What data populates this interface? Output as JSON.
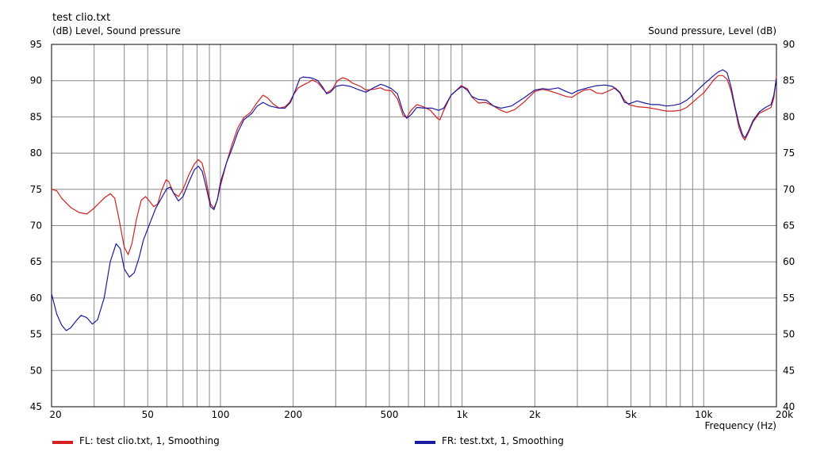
{
  "chart_data": {
    "type": "line",
    "title": "test clio.txt",
    "left_axis_label": "(dB)  Level, Sound pressure",
    "right_axis_label": "Sound pressure, Level  (dB)",
    "xlabel": "Frequency  (Hz)",
    "x_scale": "log",
    "xlim": [
      20,
      20000
    ],
    "ylim_left": [
      45,
      95
    ],
    "ylim_right": [
      40,
      90
    ],
    "y_ticks_left": [
      "45",
      "50",
      "55",
      "60",
      "65",
      "70",
      "75",
      "80",
      "85",
      "90",
      "95"
    ],
    "y_ticks_right": [
      "40",
      "45",
      "50",
      "55",
      "60",
      "65",
      "70",
      "75",
      "80",
      "85",
      "90"
    ],
    "x_tick_labels": [
      {
        "value": 20,
        "label": "20"
      },
      {
        "value": 50,
        "label": "50"
      },
      {
        "value": 100,
        "label": "100"
      },
      {
        "value": 200,
        "label": "200"
      },
      {
        "value": 500,
        "label": "500"
      },
      {
        "value": 1000,
        "label": "1k"
      },
      {
        "value": 2000,
        "label": "2k"
      },
      {
        "value": 5000,
        "label": "5k"
      },
      {
        "value": 10000,
        "label": "10k"
      },
      {
        "value": 20000,
        "label": "20k"
      }
    ],
    "grid": true,
    "legend_position": "bottom",
    "series": [
      {
        "name": "FL: test clio.txt, 1, Smoothing",
        "color": "#d42020",
        "points": [
          [
            20,
            75
          ],
          [
            21,
            74.8
          ],
          [
            22,
            73.8
          ],
          [
            24,
            72.5
          ],
          [
            26,
            71.8
          ],
          [
            28,
            71.6
          ],
          [
            30,
            72.4
          ],
          [
            33,
            73.8
          ],
          [
            35,
            74.4
          ],
          [
            36.5,
            73.8
          ],
          [
            38,
            71
          ],
          [
            40,
            67
          ],
          [
            41.5,
            66
          ],
          [
            43,
            67.5
          ],
          [
            45,
            71
          ],
          [
            47,
            73.5
          ],
          [
            49,
            74
          ],
          [
            51,
            73.3
          ],
          [
            53,
            72.6
          ],
          [
            55,
            73
          ],
          [
            57,
            74.8
          ],
          [
            59.5,
            76.3
          ],
          [
            61,
            76.1
          ],
          [
            64,
            74.5
          ],
          [
            67,
            74
          ],
          [
            70,
            75
          ],
          [
            74,
            77
          ],
          [
            78,
            78.5
          ],
          [
            81,
            79.1
          ],
          [
            84,
            78.6
          ],
          [
            87,
            76.5
          ],
          [
            91,
            73
          ],
          [
            94,
            72.4
          ],
          [
            97,
            73.5
          ],
          [
            100,
            75.5
          ],
          [
            106,
            78.7
          ],
          [
            112,
            81.3
          ],
          [
            118,
            83.5
          ],
          [
            125,
            84.9
          ],
          [
            133,
            85.6
          ],
          [
            142,
            87
          ],
          [
            150,
            88
          ],
          [
            157,
            87.6
          ],
          [
            165,
            86.8
          ],
          [
            175,
            86.2
          ],
          [
            185,
            86.4
          ],
          [
            193,
            87
          ],
          [
            200,
            88
          ],
          [
            210,
            89
          ],
          [
            220,
            89.4
          ],
          [
            233,
            89.8
          ],
          [
            240,
            90.1
          ],
          [
            253,
            89.7
          ],
          [
            265,
            88.9
          ],
          [
            275,
            88.3
          ],
          [
            290,
            88.8
          ],
          [
            305,
            90
          ],
          [
            320,
            90.4
          ],
          [
            335,
            90.2
          ],
          [
            350,
            89.7
          ],
          [
            380,
            89.2
          ],
          [
            400,
            88.7
          ],
          [
            430,
            88.8
          ],
          [
            460,
            89
          ],
          [
            480,
            88.7
          ],
          [
            510,
            88.6
          ],
          [
            540,
            87.5
          ],
          [
            570,
            85.2
          ],
          [
            590,
            84.9
          ],
          [
            615,
            85.9
          ],
          [
            650,
            86.7
          ],
          [
            690,
            86.4
          ],
          [
            740,
            85.9
          ],
          [
            790,
            84.8
          ],
          [
            810,
            84.6
          ],
          [
            840,
            85.9
          ],
          [
            900,
            88
          ],
          [
            950,
            88.7
          ],
          [
            990,
            89.3
          ],
          [
            1050,
            88.9
          ],
          [
            1100,
            87.7
          ],
          [
            1170,
            86.9
          ],
          [
            1250,
            87
          ],
          [
            1350,
            86.5
          ],
          [
            1450,
            85.9
          ],
          [
            1530,
            85.6
          ],
          [
            1650,
            86
          ],
          [
            1800,
            87
          ],
          [
            2000,
            88.5
          ],
          [
            2150,
            88.8
          ],
          [
            2300,
            88.6
          ],
          [
            2500,
            88.2
          ],
          [
            2700,
            87.8
          ],
          [
            2850,
            87.7
          ],
          [
            3000,
            88.2
          ],
          [
            3200,
            88.7
          ],
          [
            3400,
            88.8
          ],
          [
            3600,
            88.3
          ],
          [
            3800,
            88.2
          ],
          [
            4050,
            88.6
          ],
          [
            4300,
            89
          ],
          [
            4500,
            88.4
          ],
          [
            4700,
            87.3
          ],
          [
            4900,
            86.7
          ],
          [
            5300,
            86.4
          ],
          [
            5800,
            86.3
          ],
          [
            6300,
            86.1
          ],
          [
            7000,
            85.8
          ],
          [
            7500,
            85.8
          ],
          [
            8000,
            85.9
          ],
          [
            8500,
            86.3
          ],
          [
            9000,
            87
          ],
          [
            9500,
            87.7
          ],
          [
            10000,
            88.3
          ],
          [
            10500,
            89.2
          ],
          [
            11000,
            90.1
          ],
          [
            11500,
            90.7
          ],
          [
            12000,
            90.7
          ],
          [
            12500,
            90.2
          ],
          [
            13000,
            88.5
          ],
          [
            13500,
            86
          ],
          [
            14000,
            83.5
          ],
          [
            14500,
            82.2
          ],
          [
            14800,
            81.8
          ],
          [
            15300,
            82.8
          ],
          [
            16000,
            84.3
          ],
          [
            17000,
            85.5
          ],
          [
            18000,
            85.9
          ],
          [
            19000,
            86.3
          ],
          [
            19500,
            87.6
          ],
          [
            20000,
            90.6
          ]
        ]
      },
      {
        "name": "FR: test.txt, 1, Smoothing",
        "color": "#1a1aa0",
        "points": [
          [
            20,
            60.6
          ],
          [
            21,
            57.8
          ],
          [
            22,
            56.3
          ],
          [
            23,
            55.5
          ],
          [
            24,
            55.9
          ],
          [
            25.5,
            57
          ],
          [
            26.5,
            57.6
          ],
          [
            28,
            57.3
          ],
          [
            29.5,
            56.4
          ],
          [
            31,
            57
          ],
          [
            33,
            60
          ],
          [
            35,
            65
          ],
          [
            37,
            67.5
          ],
          [
            38.5,
            66.8
          ],
          [
            40,
            64
          ],
          [
            42,
            62.9
          ],
          [
            44,
            63.5
          ],
          [
            46,
            65.5
          ],
          [
            48,
            68
          ],
          [
            51,
            70.3
          ],
          [
            54,
            72.4
          ],
          [
            57,
            73.8
          ],
          [
            60,
            75.1
          ],
          [
            62,
            75.3
          ],
          [
            64,
            74.5
          ],
          [
            67,
            73.4
          ],
          [
            70,
            74
          ],
          [
            74,
            76
          ],
          [
            78,
            77.7
          ],
          [
            81,
            78.2
          ],
          [
            84,
            77.5
          ],
          [
            87,
            75.5
          ],
          [
            91,
            72.6
          ],
          [
            94,
            72.2
          ],
          [
            97,
            73.5
          ],
          [
            100,
            76
          ],
          [
            106,
            78.7
          ],
          [
            112,
            80.7
          ],
          [
            118,
            82.9
          ],
          [
            125,
            84.6
          ],
          [
            135,
            85.5
          ],
          [
            142,
            86.5
          ],
          [
            150,
            87
          ],
          [
            160,
            86.5
          ],
          [
            175,
            86.2
          ],
          [
            185,
            86.2
          ],
          [
            195,
            87
          ],
          [
            205,
            88.8
          ],
          [
            213,
            90.3
          ],
          [
            220,
            90.5
          ],
          [
            235,
            90.4
          ],
          [
            242,
            90.3
          ],
          [
            253,
            90
          ],
          [
            265,
            89.1
          ],
          [
            275,
            88.2
          ],
          [
            285,
            88.4
          ],
          [
            300,
            89.2
          ],
          [
            320,
            89.4
          ],
          [
            345,
            89.2
          ],
          [
            370,
            88.8
          ],
          [
            400,
            88.4
          ],
          [
            430,
            89
          ],
          [
            460,
            89.5
          ],
          [
            480,
            89.3
          ],
          [
            510,
            88.9
          ],
          [
            540,
            88.2
          ],
          [
            570,
            85.7
          ],
          [
            590,
            84.8
          ],
          [
            615,
            85.3
          ],
          [
            650,
            86.3
          ],
          [
            700,
            86.2
          ],
          [
            750,
            86.2
          ],
          [
            800,
            85.9
          ],
          [
            840,
            86.2
          ],
          [
            900,
            88
          ],
          [
            960,
            88.8
          ],
          [
            1000,
            89.2
          ],
          [
            1050,
            88.7
          ],
          [
            1100,
            87.8
          ],
          [
            1170,
            87.4
          ],
          [
            1260,
            87.3
          ],
          [
            1350,
            86.5
          ],
          [
            1450,
            86.2
          ],
          [
            1600,
            86.5
          ],
          [
            1800,
            87.6
          ],
          [
            2000,
            88.7
          ],
          [
            2150,
            88.9
          ],
          [
            2300,
            88.8
          ],
          [
            2500,
            89
          ],
          [
            2700,
            88.5
          ],
          [
            2850,
            88.2
          ],
          [
            3000,
            88.6
          ],
          [
            3300,
            89
          ],
          [
            3600,
            89.3
          ],
          [
            3900,
            89.4
          ],
          [
            4200,
            89.2
          ],
          [
            4500,
            88.3
          ],
          [
            4700,
            87
          ],
          [
            4900,
            86.8
          ],
          [
            5300,
            87.2
          ],
          [
            5700,
            86.9
          ],
          [
            6100,
            86.7
          ],
          [
            6500,
            86.7
          ],
          [
            7000,
            86.5
          ],
          [
            7500,
            86.6
          ],
          [
            8000,
            86.8
          ],
          [
            8500,
            87.3
          ],
          [
            9000,
            88
          ],
          [
            9500,
            88.8
          ],
          [
            10000,
            89.5
          ],
          [
            10500,
            90.1
          ],
          [
            11000,
            90.7
          ],
          [
            11500,
            91.2
          ],
          [
            12000,
            91.5
          ],
          [
            12500,
            91.1
          ],
          [
            13000,
            89
          ],
          [
            13500,
            86.3
          ],
          [
            14000,
            84
          ],
          [
            14500,
            82.5
          ],
          [
            14800,
            82.1
          ],
          [
            15300,
            83
          ],
          [
            16000,
            84.5
          ],
          [
            17000,
            85.7
          ],
          [
            18000,
            86.3
          ],
          [
            19000,
            86.7
          ],
          [
            19500,
            88
          ],
          [
            20000,
            90.3
          ]
        ]
      }
    ]
  }
}
